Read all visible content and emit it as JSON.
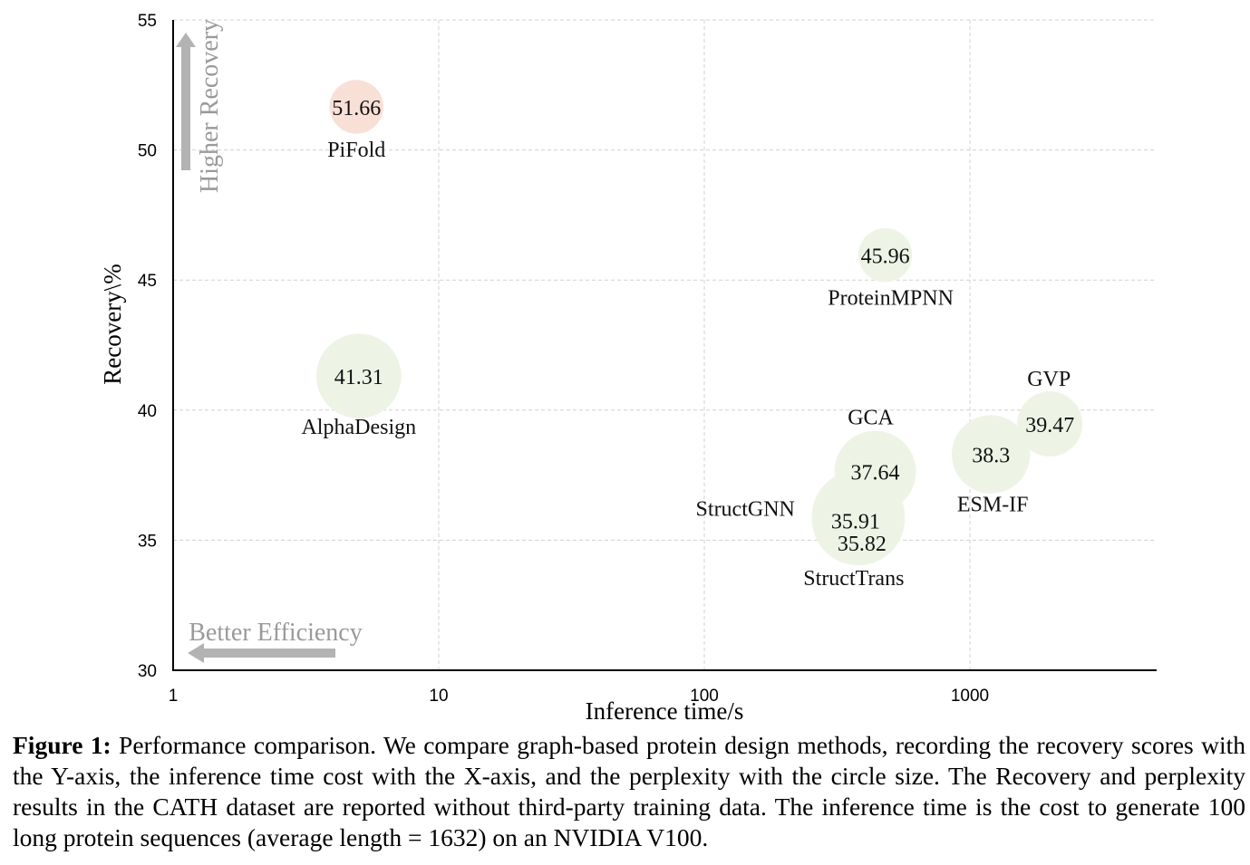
{
  "chart_data": {
    "type": "scatter",
    "subtype": "bubble",
    "xscale": "log",
    "xlabel": "Inference time/s",
    "ylabel": "Recovery\\%",
    "xlim": [
      1,
      4500
    ],
    "ylim": [
      30,
      55
    ],
    "xticks": [
      {
        "value": 1,
        "label": "1"
      },
      {
        "value": 10,
        "label": "10"
      },
      {
        "value": 100,
        "label": "100"
      },
      {
        "value": 1000,
        "label": "1000"
      }
    ],
    "yticks": [
      {
        "value": 30,
        "label": "30"
      },
      {
        "value": 35,
        "label": "35"
      },
      {
        "value": 40,
        "label": "40"
      },
      {
        "value": 45,
        "label": "45"
      },
      {
        "value": 50,
        "label": "50"
      },
      {
        "value": 55,
        "label": "55"
      }
    ],
    "grid": true,
    "annotations": {
      "y_arrow_text": "Higher Recovery",
      "x_arrow_text": "Better Efficiency"
    },
    "points": [
      {
        "name": "PiFold",
        "x": 4.9,
        "y": 51.66,
        "value_label": "51.66",
        "color": "#f9e0d6",
        "size": 3.3
      },
      {
        "name": "AlphaDesign",
        "x": 5.0,
        "y": 41.31,
        "value_label": "41.31",
        "color": "#edf4e6",
        "size": 5.2
      },
      {
        "name": "ProteinMPNN",
        "x": 480,
        "y": 45.96,
        "value_label": "45.96",
        "color": "#edf4e6",
        "size": 3.3
      },
      {
        "name": "GCA",
        "x": 440,
        "y": 37.64,
        "value_label": "37.64",
        "color": "#edf4e6",
        "size": 5.0
      },
      {
        "name": "StructGNN",
        "x": 380,
        "y": 35.91,
        "value_label": "35.91",
        "color": "#edf4e6",
        "size": 5.7
      },
      {
        "name": "StructTrans",
        "x": 380,
        "y": 35.82,
        "value_label": "35.82",
        "color": "#edf4e6",
        "size": 5.7
      },
      {
        "name": "ESM-IF",
        "x": 1200,
        "y": 38.3,
        "value_label": "38.3",
        "color": "#edf4e6",
        "size": 4.8
      },
      {
        "name": "GVP",
        "x": 2000,
        "y": 39.47,
        "value_label": "39.47",
        "color": "#edf4e6",
        "size": 4.0
      }
    ]
  },
  "caption": {
    "label": "Figure 1:",
    "text": "Performance comparison. We compare graph-based protein design methods, recording the recovery scores with the Y-axis, the inference time cost with the X-axis, and the perplexity with the circle size. The Recovery and perplexity results in the CATH dataset are reported without third-party training data. The inference time is the cost to generate 100 long protein sequences (average length = 1632) on an NVIDIA V100."
  }
}
